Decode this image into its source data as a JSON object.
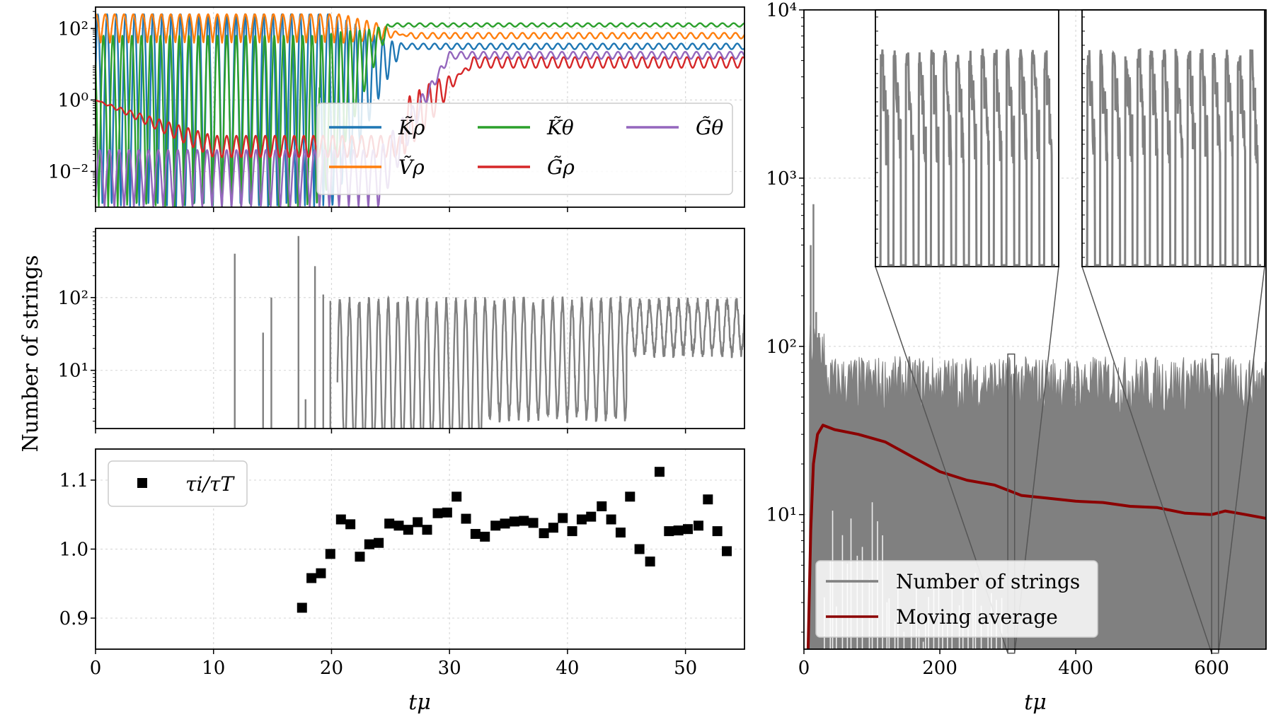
{
  "chart_data": [
    {
      "id": "top-left",
      "type": "line",
      "yscale": "log",
      "xlim": [
        0,
        55
      ],
      "ylim_exp": [
        -3,
        2.6
      ],
      "ytick_exps": [
        -2,
        0,
        2
      ],
      "ytick_labels": [
        "10⁻²",
        "10⁰",
        "10²"
      ],
      "grid": true,
      "legend": {
        "position": "lower-right",
        "columns": 3
      },
      "series": [
        {
          "name": "K̃ρ",
          "color": "#1f77b4",
          "early_high_exp": 2.4,
          "early_low_exp": -3.0,
          "transition_t": 20,
          "late_center_exp": 1.5,
          "late_amp_exp": 0.08
        },
        {
          "name": "Ṽρ",
          "color": "#ff7f0e",
          "early_high_exp": 2.4,
          "early_low_exp": 1.6,
          "transition_t": 21,
          "late_center_exp": 1.8,
          "late_amp_exp": 0.08
        },
        {
          "name": "K̃θ",
          "color": "#2ca02c",
          "early_high_exp": 1.8,
          "early_low_exp": -3.0,
          "transition_t": 19,
          "late_center_exp": 2.1,
          "late_amp_exp": 0.05
        },
        {
          "name": "G̃ρ",
          "color": "#d62728",
          "early_high_exp": 0.0,
          "early_low_exp": -1.6,
          "transition_t": 26,
          "late_center_exp": 1.05,
          "late_amp_exp": 0.15
        },
        {
          "name": "G̃θ",
          "color": "#9467bd",
          "early_high_exp": -1.4,
          "early_low_exp": -3.0,
          "transition_t": 24,
          "late_center_exp": 1.25,
          "late_amp_exp": 0.1
        }
      ]
    },
    {
      "id": "middle-left",
      "type": "line",
      "yscale": "log",
      "xlim": [
        0,
        55
      ],
      "ylim_exp": [
        0.2,
        2.95
      ],
      "ytick_exps": [
        1,
        2
      ],
      "ytick_labels": [
        "10¹",
        "10²"
      ],
      "ylabel": "Number of strings",
      "grid": true,
      "color": "#808080",
      "spikes": [
        {
          "t": 11.8,
          "value": 400
        },
        {
          "t": 14.2,
          "value": 33
        },
        {
          "t": 14.9,
          "value": 100
        },
        {
          "t": 17.2,
          "value": 700
        },
        {
          "t": 17.8,
          "value": 4
        },
        {
          "t": 18.6,
          "value": 270
        },
        {
          "t": 19.3,
          "value": 110
        },
        {
          "t": 19.9,
          "value": 90
        }
      ]
    },
    {
      "id": "bottom-left",
      "type": "scatter",
      "xlim": [
        0,
        55
      ],
      "ylim": [
        0.855,
        1.145
      ],
      "yticks": [
        0.9,
        1.0,
        1.1
      ],
      "ytick_labels": [
        "0.9",
        "1.0",
        "1.1"
      ],
      "xticks": [
        0,
        10,
        20,
        30,
        40,
        50
      ],
      "xtick_labels": [
        "0",
        "10",
        "20",
        "30",
        "40",
        "50"
      ],
      "xlabel": "tμ",
      "grid": true,
      "legend": {
        "position": "upper-left",
        "label": "τi/τT"
      },
      "points": [
        {
          "x": 17.5,
          "y": 0.915
        },
        {
          "x": 18.3,
          "y": 0.958
        },
        {
          "x": 19.1,
          "y": 0.965
        },
        {
          "x": 19.9,
          "y": 0.993
        },
        {
          "x": 20.8,
          "y": 1.043
        },
        {
          "x": 21.6,
          "y": 1.036
        },
        {
          "x": 22.4,
          "y": 0.989
        },
        {
          "x": 23.2,
          "y": 1.007
        },
        {
          "x": 24.0,
          "y": 1.009
        },
        {
          "x": 24.9,
          "y": 1.037
        },
        {
          "x": 25.7,
          "y": 1.034
        },
        {
          "x": 26.5,
          "y": 1.028
        },
        {
          "x": 27.3,
          "y": 1.039
        },
        {
          "x": 28.1,
          "y": 1.028
        },
        {
          "x": 29.0,
          "y": 1.052
        },
        {
          "x": 29.8,
          "y": 1.053
        },
        {
          "x": 30.6,
          "y": 1.076
        },
        {
          "x": 31.4,
          "y": 1.044
        },
        {
          "x": 32.2,
          "y": 1.022
        },
        {
          "x": 33.0,
          "y": 1.018
        },
        {
          "x": 33.9,
          "y": 1.034
        },
        {
          "x": 34.7,
          "y": 1.037
        },
        {
          "x": 35.5,
          "y": 1.04
        },
        {
          "x": 36.3,
          "y": 1.041
        },
        {
          "x": 37.1,
          "y": 1.038
        },
        {
          "x": 38.0,
          "y": 1.023
        },
        {
          "x": 38.8,
          "y": 1.031
        },
        {
          "x": 39.6,
          "y": 1.045
        },
        {
          "x": 40.4,
          "y": 1.026
        },
        {
          "x": 41.2,
          "y": 1.043
        },
        {
          "x": 42.0,
          "y": 1.047
        },
        {
          "x": 42.9,
          "y": 1.062
        },
        {
          "x": 43.7,
          "y": 1.043
        },
        {
          "x": 44.5,
          "y": 1.024
        },
        {
          "x": 45.3,
          "y": 1.076
        },
        {
          "x": 46.1,
          "y": 1.0
        },
        {
          "x": 47.0,
          "y": 0.982
        },
        {
          "x": 47.8,
          "y": 1.112
        },
        {
          "x": 48.6,
          "y": 1.026
        },
        {
          "x": 49.4,
          "y": 1.027
        },
        {
          "x": 50.2,
          "y": 1.029
        },
        {
          "x": 51.1,
          "y": 1.034
        },
        {
          "x": 51.9,
          "y": 1.072
        },
        {
          "x": 52.7,
          "y": 1.026
        },
        {
          "x": 53.5,
          "y": 0.997
        }
      ]
    },
    {
      "id": "right",
      "type": "line",
      "yscale": "log",
      "xlim": [
        0,
        680
      ],
      "ylim_exp": [
        0.2,
        4
      ],
      "ytick_exps": [
        1,
        2,
        3,
        4
      ],
      "ytick_labels": [
        "10¹",
        "10²",
        "10³",
        "10⁴"
      ],
      "xticks": [
        0,
        200,
        400,
        600
      ],
      "xtick_labels": [
        "0",
        "200",
        "400",
        "600"
      ],
      "xlabel": "tμ",
      "grid": true,
      "legend": {
        "position": "lower-left"
      },
      "series": [
        {
          "name": "Number of strings",
          "color": "#808080",
          "band_high": 70,
          "band_low": 1
        },
        {
          "name": "Moving average",
          "color": "#8b0000",
          "points": [
            [
              6,
              1.5
            ],
            [
              10,
              8
            ],
            [
              14,
              20
            ],
            [
              20,
              30
            ],
            [
              28,
              34
            ],
            [
              45,
              32
            ],
            [
              80,
              30
            ],
            [
              120,
              27
            ],
            [
              160,
              22
            ],
            [
              200,
              18
            ],
            [
              240,
              16
            ],
            [
              280,
              15
            ],
            [
              320,
              13
            ],
            [
              360,
              12.5
            ],
            [
              400,
              12
            ],
            [
              440,
              11.8
            ],
            [
              480,
              11.2
            ],
            [
              520,
              11
            ],
            [
              560,
              10.2
            ],
            [
              600,
              10
            ],
            [
              620,
              10.5
            ],
            [
              650,
              10
            ],
            [
              680,
              9.5
            ]
          ]
        }
      ],
      "zoom_windows": [
        {
          "x_range": [
            300,
            310
          ],
          "y_range": [
            1.5,
            90
          ]
        },
        {
          "x_range": [
            600,
            610
          ],
          "y_range": [
            1.5,
            90
          ]
        }
      ]
    }
  ]
}
